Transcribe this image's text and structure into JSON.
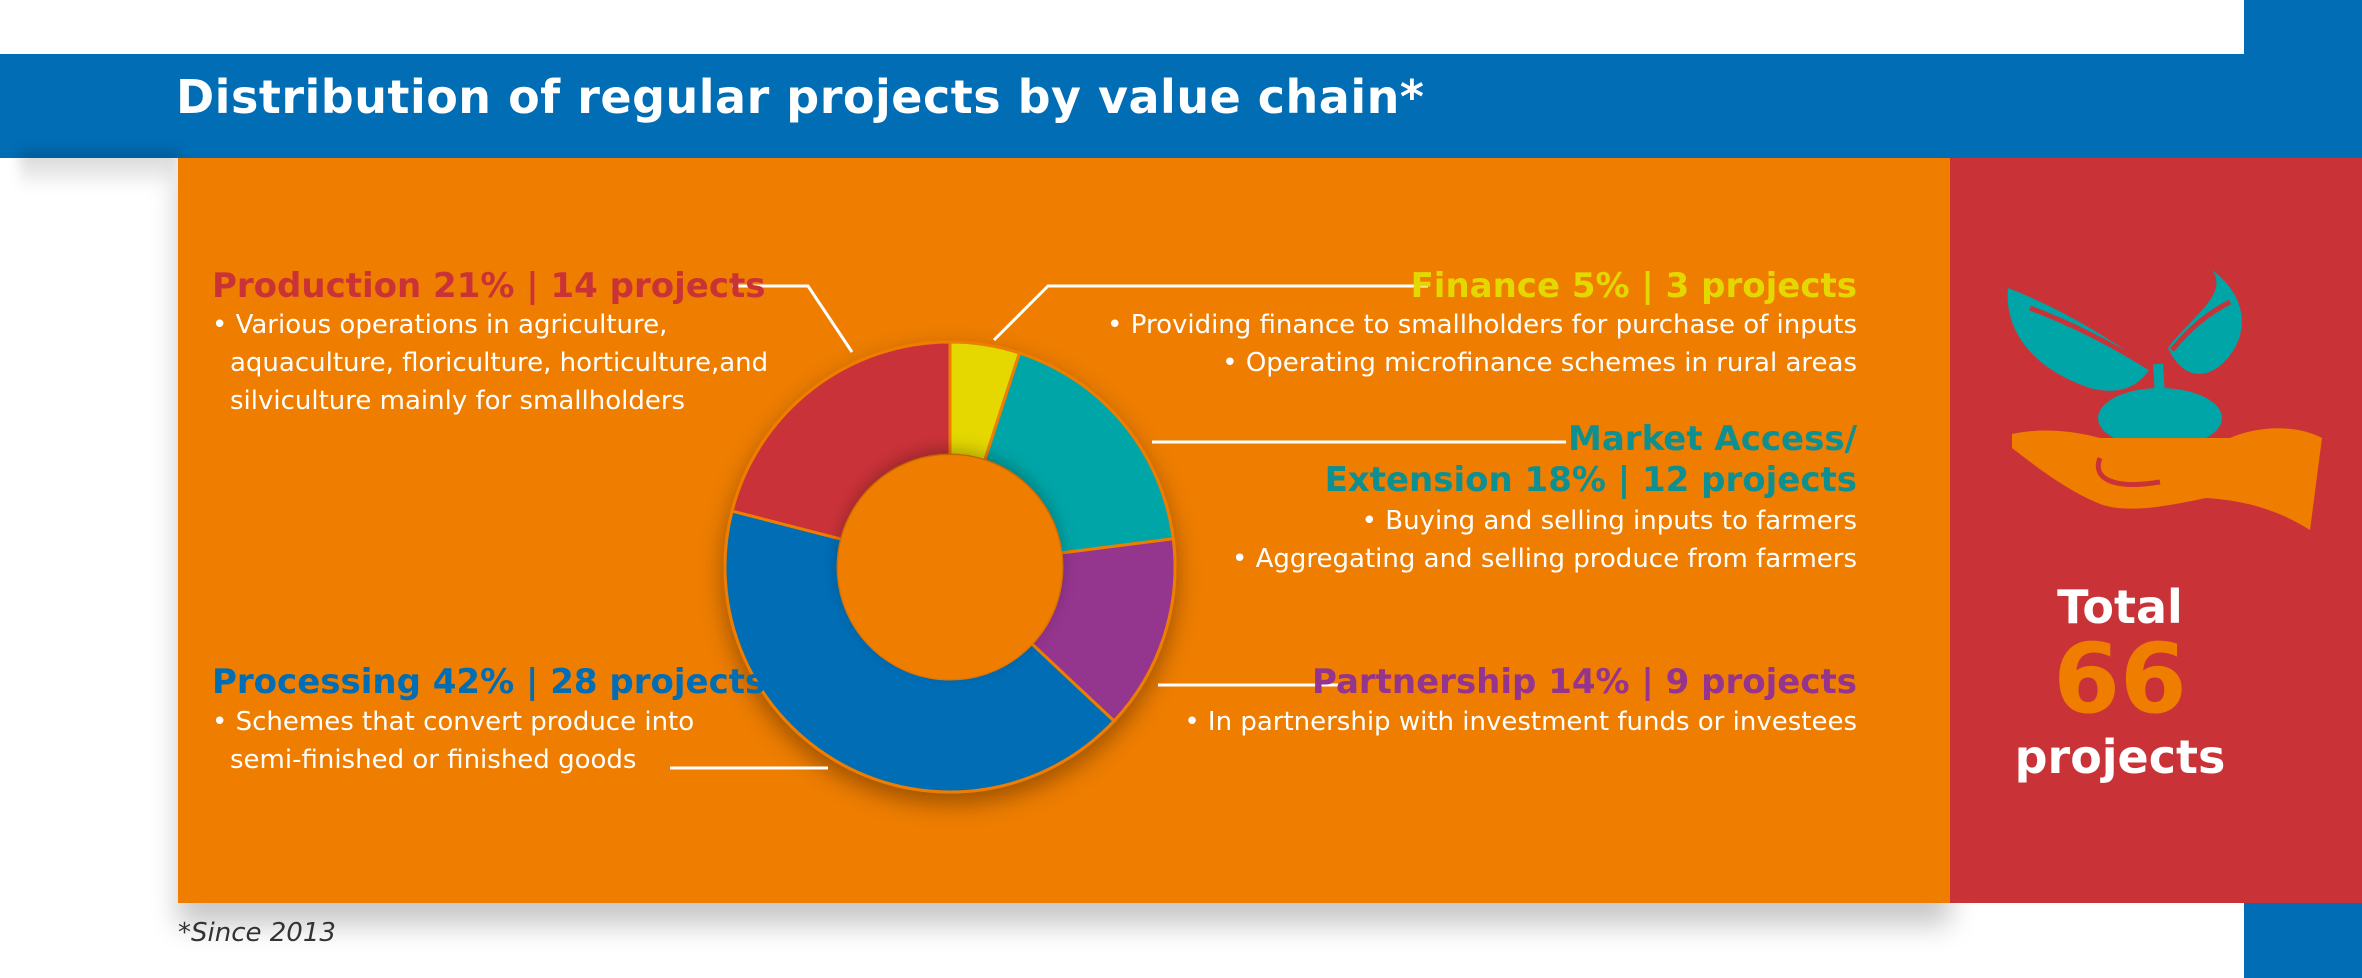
{
  "title": "Distribution of regular projects by value chain*",
  "footnote": "*Since 2013",
  "colors": {
    "header_blue": "#006db5",
    "panel_orange": "#ee7d00",
    "total_red": "#c93337"
  },
  "chart_data": {
    "type": "donut",
    "series": [
      {
        "name": "Finance",
        "percent": 5,
        "projects": 3,
        "color": "#e4d800",
        "heading": "Finance 5% | 3 projects",
        "bullets": [
          "• Providing finance to smallholders for purchase of inputs",
          "• Operating microfinance schemes in rural areas"
        ]
      },
      {
        "name": "Market Access/ Extension",
        "percent": 18,
        "projects": 12,
        "color": "#00a5a7",
        "heading_line1": "Market Access/",
        "heading_line2": "Extension 18% | 12 projects",
        "bullets": [
          "• Buying and selling inputs to farmers",
          "• Aggregating and selling produce from farmers"
        ]
      },
      {
        "name": "Partnership",
        "percent": 14,
        "projects": 9,
        "color": "#94348e",
        "heading": "Partnership 14% | 9 projects",
        "bullets": [
          "• In partnership with investment funds or investees"
        ]
      },
      {
        "name": "Processing",
        "percent": 42,
        "projects": 28,
        "color": "#006db5",
        "heading": "Processing 42% | 28 projects",
        "bullets": [
          "• Schemes that convert produce into",
          "semi-finished or finished goods"
        ]
      },
      {
        "name": "Production",
        "percent": 21,
        "projects": 14,
        "color": "#c93337",
        "heading": "Production 21% | 14 projects",
        "bullets": [
          "• Various operations in agriculture,",
          "aquaculture, floriculture, horticulture,and",
          "silviculture mainly for smallholders"
        ]
      }
    ]
  },
  "total": {
    "label": "Total",
    "value": "66",
    "unit": "projects",
    "value_color": "#ee7d00",
    "icon": "plant-in-hand-icon"
  }
}
